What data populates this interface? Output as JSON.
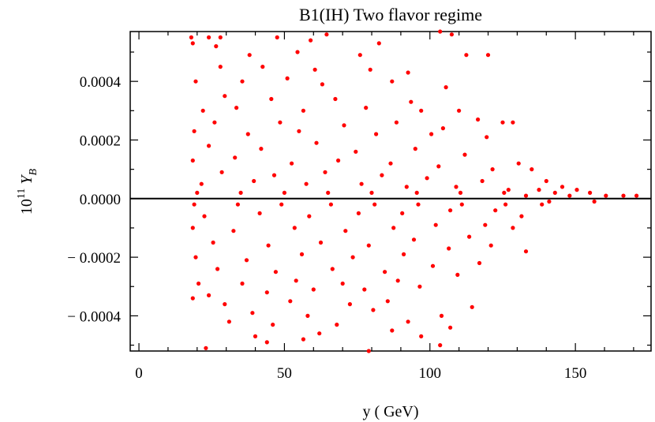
{
  "chart_data": {
    "type": "scatter",
    "title": "B1(IH) Two flavor regime",
    "xlabel": "y ( GeV)",
    "ylabel": {
      "base": "10",
      "exponent": "11",
      "symbol": "Y",
      "subscript": "B"
    },
    "xlim": [
      -3,
      176
    ],
    "ylim": [
      -0.00052,
      0.00057
    ],
    "xticks": [
      0,
      50,
      100,
      150
    ],
    "xtick_labels": [
      "0",
      "50",
      "100",
      "150"
    ],
    "yticks": [
      -0.0004,
      -0.0002,
      0.0,
      0.0002,
      0.0004
    ],
    "ytick_labels": [
      "− 0.0004",
      "− 0.0002",
      "0.0000",
      "0.0002",
      "0.0004"
    ],
    "grid": false,
    "reference_line_y": 0,
    "marker_color": "#ff0000",
    "x_range_of_points": [
      18,
      172
    ],
    "point_count_estimate": 2000,
    "points": [
      [
        18.0,
        0.00055
      ],
      [
        18.5,
        0.00053
      ],
      [
        24.0,
        0.00055
      ],
      [
        28.0,
        0.00055
      ],
      [
        26.5,
        0.00052
      ],
      [
        47.5,
        0.00055
      ],
      [
        64.5,
        0.00056
      ],
      [
        103.5,
        0.00057
      ],
      [
        107.5,
        0.00056
      ],
      [
        38.0,
        0.00049
      ],
      [
        54.5,
        0.0005
      ],
      [
        76.0,
        0.00049
      ],
      [
        112.5,
        0.00049
      ],
      [
        120.0,
        0.00049
      ],
      [
        59.0,
        0.00054
      ],
      [
        82.5,
        0.00053
      ],
      [
        28.0,
        0.00045
      ],
      [
        42.5,
        0.00045
      ],
      [
        60.5,
        0.00044
      ],
      [
        79.5,
        0.00044
      ],
      [
        92.5,
        0.00043
      ],
      [
        19.5,
        0.0004
      ],
      [
        35.5,
        0.0004
      ],
      [
        51.0,
        0.00041
      ],
      [
        63.0,
        0.00039
      ],
      [
        87.0,
        0.0004
      ],
      [
        105.5,
        0.00038
      ],
      [
        29.5,
        0.00035
      ],
      [
        45.5,
        0.00034
      ],
      [
        67.5,
        0.00034
      ],
      [
        93.5,
        0.00033
      ],
      [
        110.0,
        0.0003
      ],
      [
        22.0,
        0.0003
      ],
      [
        33.5,
        0.00031
      ],
      [
        56.5,
        0.0003
      ],
      [
        78.0,
        0.00031
      ],
      [
        97.0,
        0.0003
      ],
      [
        116.5,
        0.00027
      ],
      [
        125.0,
        0.00026
      ],
      [
        26.0,
        0.00026
      ],
      [
        48.5,
        0.00026
      ],
      [
        70.5,
        0.00025
      ],
      [
        88.5,
        0.00026
      ],
      [
        104.5,
        0.00024
      ],
      [
        19.0,
        0.00023
      ],
      [
        37.5,
        0.00022
      ],
      [
        55.0,
        0.00023
      ],
      [
        81.5,
        0.00022
      ],
      [
        100.5,
        0.00022
      ],
      [
        119.5,
        0.00021
      ],
      [
        128.5,
        0.00026
      ],
      [
        135.0,
        0.0001
      ],
      [
        140.0,
        6e-05
      ],
      [
        145.5,
        4e-05
      ],
      [
        150.5,
        3e-05
      ],
      [
        24.0,
        0.00018
      ],
      [
        42.0,
        0.00017
      ],
      [
        61.0,
        0.00019
      ],
      [
        74.5,
        0.00016
      ],
      [
        95.0,
        0.00017
      ],
      [
        112.0,
        0.00015
      ],
      [
        130.5,
        0.00012
      ],
      [
        18.5,
        0.00013
      ],
      [
        33.0,
        0.00014
      ],
      [
        52.5,
        0.00012
      ],
      [
        68.5,
        0.00013
      ],
      [
        86.5,
        0.00012
      ],
      [
        103.0,
        0.00011
      ],
      [
        121.5,
        0.0001
      ],
      [
        28.5,
        9e-05
      ],
      [
        46.5,
        8e-05
      ],
      [
        64.0,
        9e-05
      ],
      [
        83.5,
        8e-05
      ],
      [
        99.0,
        7e-05
      ],
      [
        118.0,
        6e-05
      ],
      [
        137.5,
        3e-05
      ],
      [
        155.0,
        2e-05
      ],
      [
        160.5,
        1e-05
      ],
      [
        166.5,
        1e-05
      ],
      [
        171.0,
        1e-05
      ],
      [
        21.5,
        5e-05
      ],
      [
        39.5,
        6e-05
      ],
      [
        57.5,
        5e-05
      ],
      [
        76.5,
        5e-05
      ],
      [
        92.0,
        4e-05
      ],
      [
        109.0,
        4e-05
      ],
      [
        127.0,
        3e-05
      ],
      [
        143.0,
        2e-05
      ],
      [
        20.0,
        2e-05
      ],
      [
        35.0,
        2e-05
      ],
      [
        50.0,
        2e-05
      ],
      [
        65.0,
        2e-05
      ],
      [
        80.0,
        2e-05
      ],
      [
        95.5,
        2e-05
      ],
      [
        110.5,
        2e-05
      ],
      [
        125.5,
        2e-05
      ],
      [
        133.0,
        1e-05
      ],
      [
        148.0,
        1e-05
      ],
      [
        19.0,
        -2e-05
      ],
      [
        34.0,
        -2e-05
      ],
      [
        49.0,
        -2e-05
      ],
      [
        66.0,
        -2e-05
      ],
      [
        81.0,
        -2e-05
      ],
      [
        96.0,
        -2e-05
      ],
      [
        111.0,
        -2e-05
      ],
      [
        126.0,
        -2e-05
      ],
      [
        141.0,
        -1e-05
      ],
      [
        156.5,
        -1e-05
      ],
      [
        22.5,
        -6e-05
      ],
      [
        41.5,
        -5e-05
      ],
      [
        58.5,
        -6e-05
      ],
      [
        75.5,
        -5e-05
      ],
      [
        90.5,
        -5e-05
      ],
      [
        107.0,
        -4e-05
      ],
      [
        122.5,
        -4e-05
      ],
      [
        138.5,
        -2e-05
      ],
      [
        18.5,
        -0.0001
      ],
      [
        32.5,
        -0.00011
      ],
      [
        53.5,
        -0.0001
      ],
      [
        71.0,
        -0.00011
      ],
      [
        87.5,
        -0.0001
      ],
      [
        102.0,
        -9e-05
      ],
      [
        119.0,
        -9e-05
      ],
      [
        131.5,
        -6e-05
      ],
      [
        25.5,
        -0.00015
      ],
      [
        44.5,
        -0.00016
      ],
      [
        62.5,
        -0.00015
      ],
      [
        79.0,
        -0.00016
      ],
      [
        94.5,
        -0.00014
      ],
      [
        113.5,
        -0.00013
      ],
      [
        128.5,
        -0.0001
      ],
      [
        19.5,
        -0.0002
      ],
      [
        37.0,
        -0.00021
      ],
      [
        56.0,
        -0.00019
      ],
      [
        73.5,
        -0.0002
      ],
      [
        91.0,
        -0.00019
      ],
      [
        106.5,
        -0.00017
      ],
      [
        121.0,
        -0.00016
      ],
      [
        27.0,
        -0.00024
      ],
      [
        47.0,
        -0.00025
      ],
      [
        66.5,
        -0.00024
      ],
      [
        84.5,
        -0.00025
      ],
      [
        101.0,
        -0.00023
      ],
      [
        117.0,
        -0.00022
      ],
      [
        133.0,
        -0.00018
      ],
      [
        20.5,
        -0.00029
      ],
      [
        35.5,
        -0.00029
      ],
      [
        54.0,
        -0.00028
      ],
      [
        70.0,
        -0.00029
      ],
      [
        89.0,
        -0.00028
      ],
      [
        109.5,
        -0.00026
      ],
      [
        24.0,
        -0.00033
      ],
      [
        44.0,
        -0.00032
      ],
      [
        60.0,
        -0.00031
      ],
      [
        77.5,
        -0.00031
      ],
      [
        96.5,
        -0.0003
      ],
      [
        29.5,
        -0.00036
      ],
      [
        52.0,
        -0.00035
      ],
      [
        72.5,
        -0.00036
      ],
      [
        85.5,
        -0.00035
      ],
      [
        114.5,
        -0.00037
      ],
      [
        18.5,
        -0.00034
      ],
      [
        39.0,
        -0.00039
      ],
      [
        58.0,
        -0.0004
      ],
      [
        80.5,
        -0.00038
      ],
      [
        104.0,
        -0.0004
      ],
      [
        31.0,
        -0.00042
      ],
      [
        46.0,
        -0.00043
      ],
      [
        68.0,
        -0.00043
      ],
      [
        92.5,
        -0.00042
      ],
      [
        40.0,
        -0.00047
      ],
      [
        62.0,
        -0.00046
      ],
      [
        87.0,
        -0.00045
      ],
      [
        107.0,
        -0.00044
      ],
      [
        23.0,
        -0.00051
      ],
      [
        79.0,
        -0.00052
      ],
      [
        103.5,
        -0.0005
      ],
      [
        44.0,
        -0.00049
      ],
      [
        56.5,
        -0.00048
      ],
      [
        97.0,
        -0.00047
      ]
    ]
  }
}
